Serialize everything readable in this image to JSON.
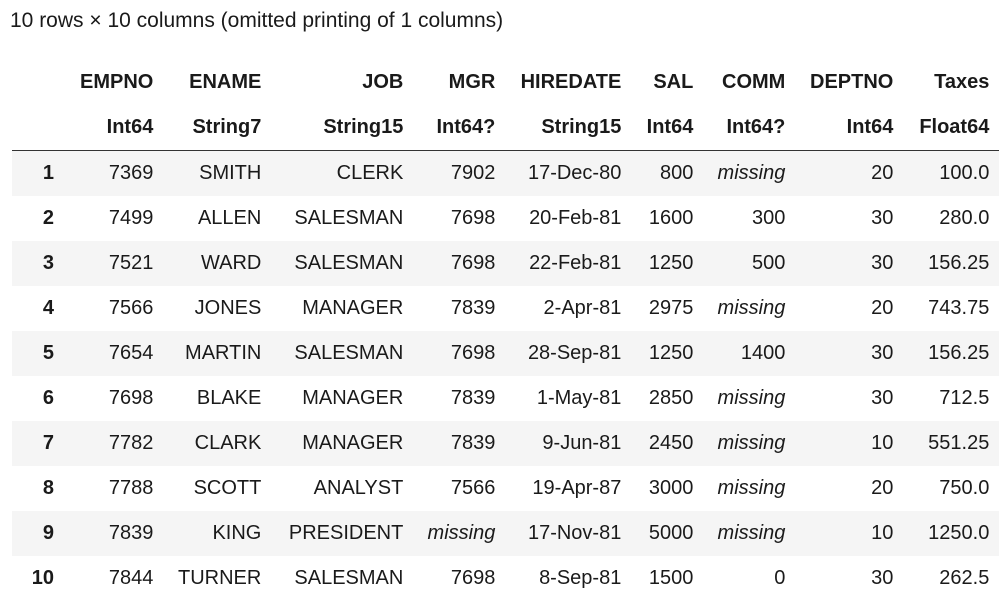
{
  "caption": "10 rows × 10 columns (omitted printing of 1 columns)",
  "columns": [
    {
      "name": "EMPNO",
      "type": "Int64"
    },
    {
      "name": "ENAME",
      "type": "String7"
    },
    {
      "name": "JOB",
      "type": "String15"
    },
    {
      "name": "MGR",
      "type": "Int64?"
    },
    {
      "name": "HIREDATE",
      "type": "String15"
    },
    {
      "name": "SAL",
      "type": "Int64"
    },
    {
      "name": "COMM",
      "type": "Int64?"
    },
    {
      "name": "DEPTNO",
      "type": "Int64"
    },
    {
      "name": "Taxes",
      "type": "Float64"
    }
  ],
  "rows": [
    {
      "index": "1",
      "cells": [
        "7369",
        "SMITH",
        "CLERK",
        "7902",
        "17-Dec-80",
        "800",
        "missing",
        "20",
        "100.0"
      ]
    },
    {
      "index": "2",
      "cells": [
        "7499",
        "ALLEN",
        "SALESMAN",
        "7698",
        "20-Feb-81",
        "1600",
        "300",
        "30",
        "280.0"
      ]
    },
    {
      "index": "3",
      "cells": [
        "7521",
        "WARD",
        "SALESMAN",
        "7698",
        "22-Feb-81",
        "1250",
        "500",
        "30",
        "156.25"
      ]
    },
    {
      "index": "4",
      "cells": [
        "7566",
        "JONES",
        "MANAGER",
        "7839",
        "2-Apr-81",
        "2975",
        "missing",
        "20",
        "743.75"
      ]
    },
    {
      "index": "5",
      "cells": [
        "7654",
        "MARTIN",
        "SALESMAN",
        "7698",
        "28-Sep-81",
        "1250",
        "1400",
        "30",
        "156.25"
      ]
    },
    {
      "index": "6",
      "cells": [
        "7698",
        "BLAKE",
        "MANAGER",
        "7839",
        "1-May-81",
        "2850",
        "missing",
        "30",
        "712.5"
      ]
    },
    {
      "index": "7",
      "cells": [
        "7782",
        "CLARK",
        "MANAGER",
        "7839",
        "9-Jun-81",
        "2450",
        "missing",
        "10",
        "551.25"
      ]
    },
    {
      "index": "8",
      "cells": [
        "7788",
        "SCOTT",
        "ANALYST",
        "7566",
        "19-Apr-87",
        "3000",
        "missing",
        "20",
        "750.0"
      ]
    },
    {
      "index": "9",
      "cells": [
        "7839",
        "KING",
        "PRESIDENT",
        "missing",
        "17-Nov-81",
        "5000",
        "missing",
        "10",
        "1250.0"
      ]
    },
    {
      "index": "10",
      "cells": [
        "7844",
        "TURNER",
        "SALESMAN",
        "7698",
        "8-Sep-81",
        "1500",
        "0",
        "30",
        "262.5"
      ]
    }
  ]
}
